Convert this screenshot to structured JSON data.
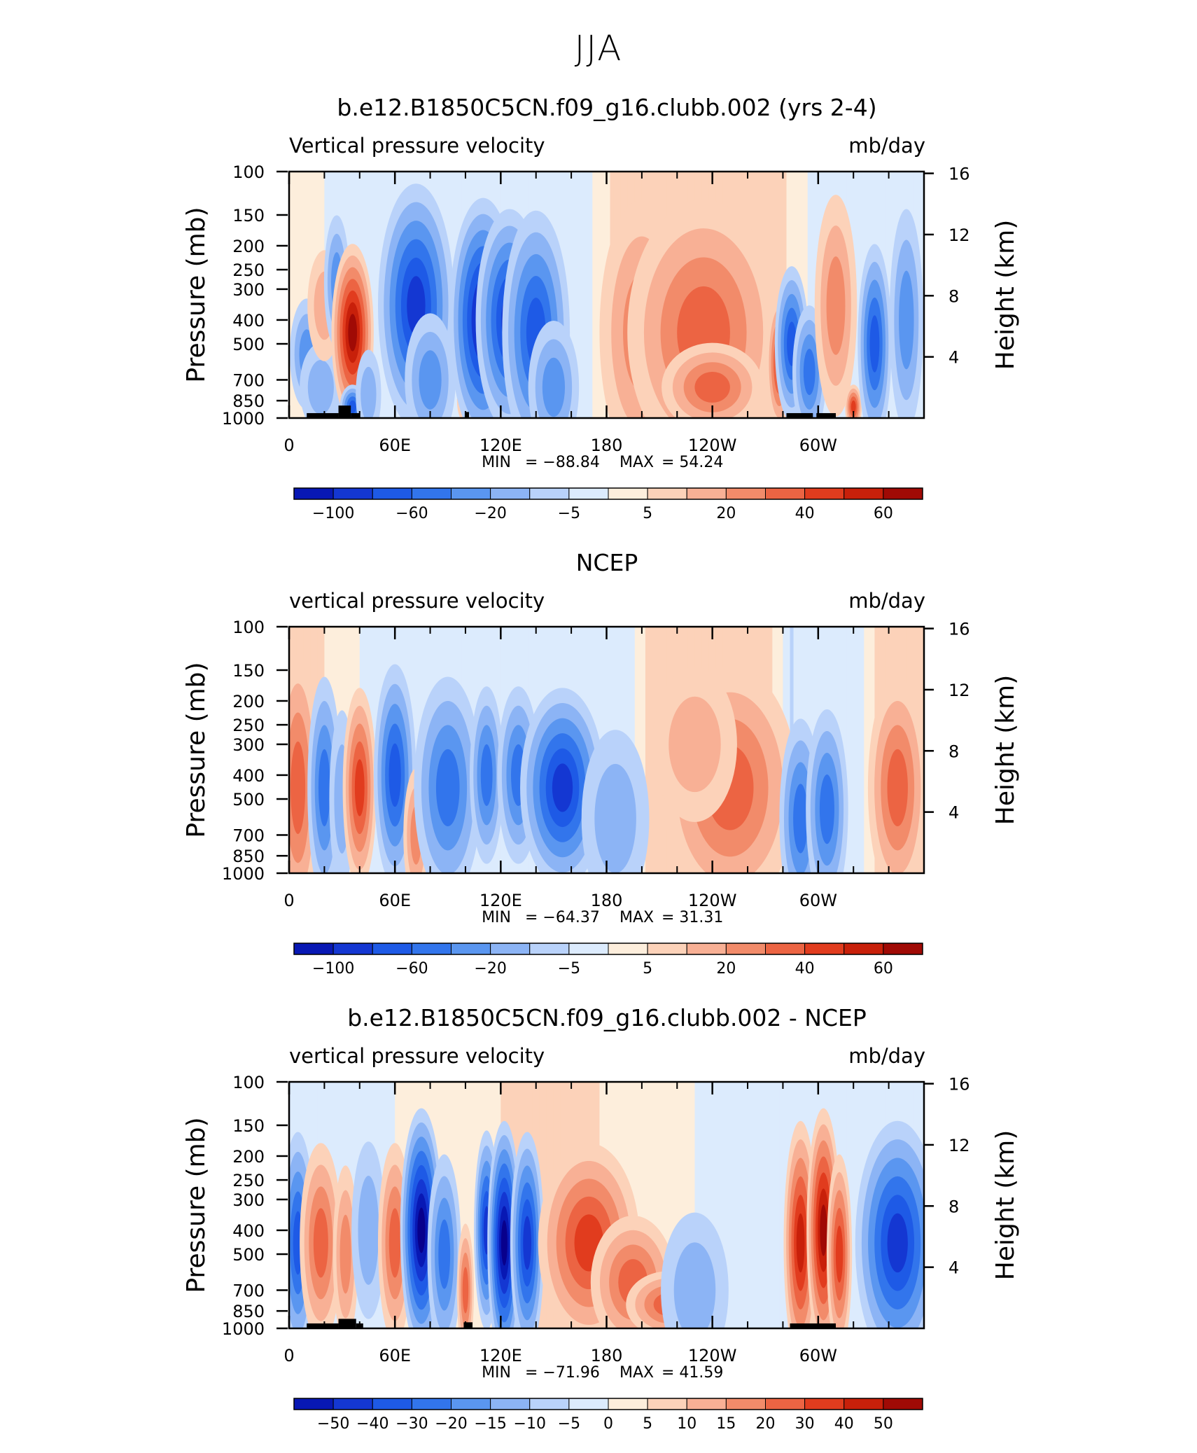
{
  "page_title": "JJA",
  "palette": [
    "#08008c",
    "#0818b4",
    "#1437d2",
    "#1e5ae6",
    "#3275ec",
    "#5a96f0",
    "#8cb4f5",
    "#b9d2fa",
    "#dcebfd",
    "#fdeedc",
    "#fcd2b9",
    "#f8b095",
    "#f28b6a",
    "#ec6443",
    "#e13c1e",
    "#c8200a",
    "#a00a05",
    "#780000"
  ],
  "panels": [
    {
      "id": "model",
      "title": "b.e12.B1850C5CN.f09_g16.clubb.002 (yrs 2-4)",
      "left_label": "Vertical pressure velocity",
      "right_label": "mb/day",
      "stats": {
        "min_label": "MIN",
        "min": "−88.84",
        "max_label": "MAX",
        "max": "54.24"
      },
      "colorbar_ticks": [
        "−100",
        "−60",
        "−20",
        "−5",
        "5",
        "20",
        "40",
        "60"
      ],
      "blobs": [
        {
          "lon": 10,
          "p": 550,
          "w": 4,
          "h": 0.25,
          "a": -3
        },
        {
          "lon": 18,
          "p": 750,
          "w": 5,
          "h": 0.2,
          "a": -2
        },
        {
          "lon": 20,
          "p": 350,
          "w": 4,
          "h": 0.25,
          "a": 1.5
        },
        {
          "lon": 27,
          "p": 280,
          "w": 3,
          "h": 0.3,
          "a": -2.5
        },
        {
          "lon": 36,
          "p": 450,
          "w": 5,
          "h": 0.4,
          "a": 6.5
        },
        {
          "lon": 36,
          "p": 900,
          "w": 3,
          "h": 0.1,
          "a": -5
        },
        {
          "lon": 45,
          "p": 800,
          "w": 3,
          "h": 0.2,
          "a": -2
        },
        {
          "lon": 72,
          "p": 350,
          "w": 9,
          "h": 0.55,
          "a": -6
        },
        {
          "lon": 80,
          "p": 700,
          "w": 6,
          "h": 0.3,
          "a": -3
        },
        {
          "lon": 100,
          "p": 850,
          "w": 2,
          "h": 0.1,
          "a": 2.5
        },
        {
          "lon": 110,
          "p": 400,
          "w": 8,
          "h": 0.55,
          "a": -6.5
        },
        {
          "lon": 125,
          "p": 400,
          "w": 8,
          "h": 0.5,
          "a": -6
        },
        {
          "lon": 140,
          "p": 450,
          "w": 8,
          "h": 0.55,
          "a": -5
        },
        {
          "lon": 150,
          "p": 750,
          "w": 6,
          "h": 0.3,
          "a": -3
        },
        {
          "lon": 200,
          "p": 450,
          "w": 10,
          "h": 0.6,
          "a": 2.5
        },
        {
          "lon": 235,
          "p": 450,
          "w": 18,
          "h": 0.6,
          "a": 3.5
        },
        {
          "lon": 240,
          "p": 750,
          "w": 12,
          "h": 0.2,
          "a": 4
        },
        {
          "lon": 278,
          "p": 600,
          "w": 3,
          "h": 0.3,
          "a": 5
        },
        {
          "lon": 285,
          "p": 500,
          "w": 4,
          "h": 0.35,
          "a": -5
        },
        {
          "lon": 295,
          "p": 650,
          "w": 4,
          "h": 0.3,
          "a": -4
        },
        {
          "lon": 310,
          "p": 350,
          "w": 5,
          "h": 0.5,
          "a": 2.5
        },
        {
          "lon": 320,
          "p": 900,
          "w": 2,
          "h": 0.1,
          "a": 5
        },
        {
          "lon": 332,
          "p": 500,
          "w": 4,
          "h": 0.45,
          "a": -4.5
        },
        {
          "lon": 350,
          "p": 400,
          "w": 4,
          "h": 0.5,
          "a": -3
        }
      ],
      "base": [
        {
          "lon": 0,
          "v": 0
        },
        {
          "lon": 60,
          "v": -1.5
        },
        {
          "lon": 170,
          "v": -0.8
        },
        {
          "lon": 190,
          "v": 1.5
        },
        {
          "lon": 270,
          "v": 1.5
        },
        {
          "lon": 300,
          "v": -1
        },
        {
          "lon": 360,
          "v": -1.2
        }
      ],
      "topo": [
        [
          10,
          28,
          1000,
          955
        ],
        [
          28,
          35,
          1000,
          890
        ],
        [
          35,
          40,
          1000,
          955
        ],
        [
          100,
          102,
          1000,
          945
        ],
        [
          282,
          297,
          1000,
          955
        ],
        [
          299,
          310,
          1000,
          955
        ]
      ]
    },
    {
      "id": "ncep",
      "title": "NCEP",
      "left_label": "vertical pressure velocity",
      "right_label": "mb/day",
      "stats": {
        "min_label": "MIN",
        "min": "−64.37",
        "max_label": "MAX",
        "max": "31.31"
      },
      "colorbar_ticks": [
        "−100",
        "−60",
        "−20",
        "−5",
        "5",
        "20",
        "40",
        "60"
      ],
      "blobs": [
        {
          "lon": 5,
          "p": 450,
          "w": 5,
          "h": 0.6,
          "a": 3.5
        },
        {
          "lon": 20,
          "p": 450,
          "w": 4,
          "h": 0.5,
          "a": -3.5
        },
        {
          "lon": 30,
          "p": 500,
          "w": 3,
          "h": 0.4,
          "a": -2
        },
        {
          "lon": 40,
          "p": 450,
          "w": 4,
          "h": 0.45,
          "a": 4.5
        },
        {
          "lon": 60,
          "p": 400,
          "w": 5,
          "h": 0.5,
          "a": -4.5
        },
        {
          "lon": 72,
          "p": 700,
          "w": 3,
          "h": 0.3,
          "a": 2.5
        },
        {
          "lon": 90,
          "p": 450,
          "w": 8,
          "h": 0.5,
          "a": -4
        },
        {
          "lon": 112,
          "p": 400,
          "w": 4,
          "h": 0.4,
          "a": -4
        },
        {
          "lon": 130,
          "p": 400,
          "w": 5,
          "h": 0.4,
          "a": -3.5
        },
        {
          "lon": 155,
          "p": 450,
          "w": 10,
          "h": 0.45,
          "a": -5.5
        },
        {
          "lon": 185,
          "p": 600,
          "w": 8,
          "h": 0.4,
          "a": -2
        },
        {
          "lon": 250,
          "p": 450,
          "w": 16,
          "h": 0.55,
          "a": 3.5
        },
        {
          "lon": 230,
          "p": 300,
          "w": 10,
          "h": 0.35,
          "a": 2
        },
        {
          "lon": 290,
          "p": 600,
          "w": 5,
          "h": 0.45,
          "a": -4
        },
        {
          "lon": 305,
          "p": 550,
          "w": 5,
          "h": 0.45,
          "a": -3.5
        },
        {
          "lon": 345,
          "p": 450,
          "w": 7,
          "h": 0.5,
          "a": 3.5
        }
      ],
      "base": [
        {
          "lon": 0,
          "v": 1.5
        },
        {
          "lon": 50,
          "v": -1
        },
        {
          "lon": 170,
          "v": -1
        },
        {
          "lon": 195,
          "v": -0.5
        },
        {
          "lon": 210,
          "v": 1.5
        },
        {
          "lon": 270,
          "v": 1.5
        },
        {
          "lon": 285,
          "v": -1.5
        },
        {
          "lon": 325,
          "v": -0.5
        },
        {
          "lon": 340,
          "v": 1.5
        },
        {
          "lon": 360,
          "v": 1.5
        }
      ],
      "topo": []
    },
    {
      "id": "diff",
      "title": "b.e12.B1850C5CN.f09_g16.clubb.002 - NCEP",
      "left_label": "vertical pressure velocity",
      "right_label": "mb/day",
      "stats": {
        "min_label": "MIN",
        "min": "−71.96",
        "max_label": "MAX",
        "max": "41.59"
      },
      "colorbar_ticks": [
        "−50",
        "−40",
        "−30",
        "−20",
        "−15",
        "−10",
        "−5",
        "0",
        "5",
        "10",
        "15",
        "20",
        "30",
        "40",
        "50"
      ],
      "blobs": [
        {
          "lon": 5,
          "p": 450,
          "w": 4,
          "h": 0.5,
          "a": -4.5
        },
        {
          "lon": 18,
          "p": 450,
          "w": 5,
          "h": 0.45,
          "a": 3.5
        },
        {
          "lon": 32,
          "p": 500,
          "w": 3,
          "h": 0.4,
          "a": 2.5
        },
        {
          "lon": 45,
          "p": 400,
          "w": 4,
          "h": 0.4,
          "a": -1.5
        },
        {
          "lon": 60,
          "p": 450,
          "w": 4,
          "h": 0.45,
          "a": 3.5
        },
        {
          "lon": 75,
          "p": 400,
          "w": 5,
          "h": 0.55,
          "a": -7.5
        },
        {
          "lon": 88,
          "p": 500,
          "w": 4,
          "h": 0.45,
          "a": -4
        },
        {
          "lon": 100,
          "p": 700,
          "w": 2,
          "h": 0.3,
          "a": 4
        },
        {
          "lon": 112,
          "p": 400,
          "w": 3,
          "h": 0.45,
          "a": -5.5
        },
        {
          "lon": 122,
          "p": 450,
          "w": 4,
          "h": 0.55,
          "a": -8
        },
        {
          "lon": 135,
          "p": 450,
          "w": 4,
          "h": 0.5,
          "a": -6
        },
        {
          "lon": 170,
          "p": 450,
          "w": 12,
          "h": 0.45,
          "a": 5
        },
        {
          "lon": 195,
          "p": 650,
          "w": 10,
          "h": 0.3,
          "a": 4
        },
        {
          "lon": 215,
          "p": 800,
          "w": 10,
          "h": 0.15,
          "a": 4
        },
        {
          "lon": 230,
          "p": 700,
          "w": 8,
          "h": 0.35,
          "a": -1.5
        },
        {
          "lon": 290,
          "p": 450,
          "w": 4,
          "h": 0.55,
          "a": 5.5
        },
        {
          "lon": 303,
          "p": 400,
          "w": 4,
          "h": 0.55,
          "a": 6.5
        },
        {
          "lon": 312,
          "p": 500,
          "w": 3,
          "h": 0.45,
          "a": 5
        },
        {
          "lon": 345,
          "p": 450,
          "w": 10,
          "h": 0.55,
          "a": -6
        }
      ],
      "base": [
        {
          "lon": 0,
          "v": -1
        },
        {
          "lon": 60,
          "v": -0.5
        },
        {
          "lon": 150,
          "v": 1
        },
        {
          "lon": 230,
          "v": -0.5
        },
        {
          "lon": 280,
          "v": -0.5
        },
        {
          "lon": 330,
          "v": -1.5
        },
        {
          "lon": 360,
          "v": -1
        }
      ],
      "topo": [
        [
          10,
          28,
          1000,
          955
        ],
        [
          28,
          38,
          1000,
          915
        ],
        [
          38,
          42,
          1000,
          955
        ],
        [
          99,
          104,
          1000,
          945
        ],
        [
          284,
          310,
          1000,
          955
        ]
      ]
    }
  ],
  "chart_data": {
    "type": "heatmap",
    "season": "JJA",
    "x": {
      "label": "",
      "ticks": [
        "0",
        "60E",
        "120E",
        "180",
        "120W",
        "60W"
      ],
      "tick_values": [
        0,
        60,
        120,
        180,
        240,
        300
      ],
      "range": [
        0,
        360
      ]
    },
    "y_left": {
      "label": "Pressure (mb)",
      "ticks": [
        "100",
        "150",
        "200",
        "250",
        "300",
        "400",
        "500",
        "700",
        "850",
        "1000"
      ],
      "tick_values": [
        100,
        150,
        200,
        250,
        300,
        400,
        500,
        700,
        850,
        1000
      ],
      "range": [
        1000,
        100
      ],
      "scale": "log"
    },
    "y_right": {
      "label": "Height (km)",
      "ticks": [
        "16",
        "12",
        "8",
        "4"
      ],
      "tick_values": [
        16,
        12,
        8,
        4
      ]
    },
    "units": "mb/day",
    "panels": [
      {
        "title": "b.e12.B1850C5CN.f09_g16.clubb.002 (yrs 2-4)",
        "field": "Vertical pressure velocity",
        "min": -88.84,
        "max": 54.24,
        "levels": [
          -120,
          -100,
          -80,
          -60,
          -40,
          -20,
          -10,
          -5,
          -1,
          1,
          5,
          10,
          20,
          30,
          40,
          50,
          60,
          70
        ]
      },
      {
        "title": "NCEP",
        "field": "vertical pressure velocity",
        "min": -64.37,
        "max": 31.31,
        "levels": [
          -120,
          -100,
          -80,
          -60,
          -40,
          -20,
          -10,
          -5,
          -1,
          1,
          5,
          10,
          20,
          30,
          40,
          50,
          60,
          70
        ]
      },
      {
        "title": "b.e12.B1850C5CN.f09_g16.clubb.002 - NCEP",
        "field": "vertical pressure velocity",
        "min": -71.96,
        "max": 41.59,
        "levels": [
          -50,
          -40,
          -30,
          -20,
          -15,
          -10,
          -5,
          0,
          5,
          10,
          15,
          20,
          30,
          40,
          50
        ]
      }
    ]
  },
  "axes": {
    "x_ticks": [
      "0",
      "60E",
      "120E",
      "180",
      "120W",
      "60W"
    ],
    "y_ticks": [
      "100",
      "150",
      "200",
      "250",
      "300",
      "400",
      "500",
      "700",
      "850",
      "1000"
    ],
    "y_right_ticks": [
      "16",
      "12",
      "8",
      "4"
    ],
    "y_title": "Pressure (mb)",
    "y_right_title": "Height (km)"
  }
}
